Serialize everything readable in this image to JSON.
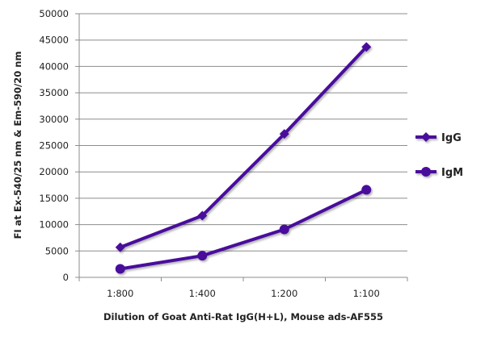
{
  "chart_data": {
    "type": "line",
    "title": "",
    "xlabel": "Dilution of Goat Anti-Rat IgG(H+L), Mouse ads-AF555",
    "ylabel": "FI at Ex-540/25 nm & Em-590/20 nm",
    "categories": [
      "1:800",
      "1:400",
      "1:200",
      "1:100"
    ],
    "ylim": [
      0,
      50000
    ],
    "yticks": [
      "0",
      "5000",
      "10000",
      "15000",
      "20000",
      "25000",
      "30000",
      "35000",
      "40000",
      "45000",
      "50000"
    ],
    "grid": true,
    "legend_position": "right",
    "series": [
      {
        "name": "IgG",
        "marker": "diamond",
        "color": "#4a0d9c",
        "values": [
          5700,
          11700,
          27200,
          43700
        ]
      },
      {
        "name": "IgM",
        "marker": "circle",
        "color": "#4a0d9c",
        "values": [
          1600,
          4100,
          9100,
          16600
        ]
      }
    ]
  }
}
